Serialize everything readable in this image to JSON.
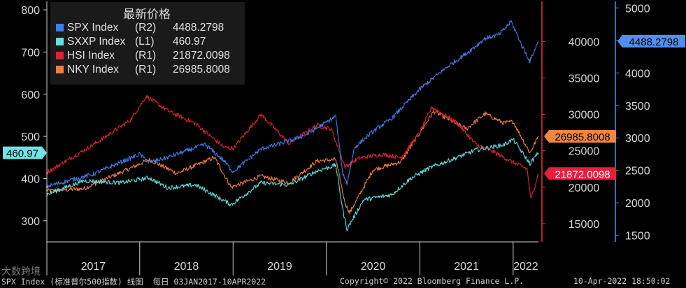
{
  "chart_data": {
    "type": "line",
    "title": "最新价格",
    "x_range": [
      "2017-01-03",
      "2022-04-10"
    ],
    "x_ticks": [
      "2017",
      "2018",
      "2019",
      "2020",
      "2021",
      "2022"
    ],
    "grid": false,
    "legend_position": "top-left",
    "axes": {
      "L1": {
        "side": "left",
        "range": [
          250,
          820
        ],
        "ticks": [
          300,
          400,
          500,
          600,
          700,
          800
        ],
        "color": "#d8d8d8"
      },
      "R1": {
        "side": "right",
        "range": [
          12500,
          45500
        ],
        "ticks": [
          15000,
          20000,
          25000,
          30000,
          35000,
          40000
        ],
        "color": "#e8323c"
      },
      "R2": {
        "side": "right",
        "range": [
          1400,
          5100
        ],
        "ticks": [
          1500,
          2000,
          2500,
          3000,
          3500,
          4000,
          4500,
          5000
        ],
        "color": "#4f8ff0"
      }
    },
    "series": [
      {
        "name": "SPX Index",
        "axis": "R2",
        "last": "4488.2798",
        "color": "#3d7ff0",
        "x": [
          2017.0,
          2017.5,
          2018.0,
          2018.1,
          2018.3,
          2018.7,
          2018.9,
          2019.0,
          2019.3,
          2019.6,
          2019.8,
          2020.1,
          2020.17,
          2020.22,
          2020.3,
          2020.5,
          2020.7,
          2020.9,
          2021.0,
          2021.3,
          2021.5,
          2021.7,
          2021.85,
          2021.98,
          2022.1,
          2022.18,
          2022.27
        ],
        "values": [
          2250,
          2440,
          2750,
          2620,
          2700,
          2900,
          2650,
          2480,
          2830,
          2950,
          3060,
          3330,
          2480,
          2300,
          2850,
          3100,
          3300,
          3600,
          3750,
          4100,
          4300,
          4530,
          4590,
          4790,
          4400,
          4180,
          4488
        ]
      },
      {
        "name": "SXXP Index",
        "axis": "L1",
        "last": "460.97",
        "color": "#5fe0e0",
        "x": [
          2017.0,
          2017.4,
          2017.8,
          2018.1,
          2018.3,
          2018.6,
          2018.98,
          2019.3,
          2019.6,
          2019.9,
          2020.1,
          2020.18,
          2020.22,
          2020.4,
          2020.7,
          2020.9,
          2021.1,
          2021.4,
          2021.6,
          2021.9,
          2022.0,
          2022.18,
          2022.27
        ],
        "values": [
          362,
          395,
          390,
          402,
          378,
          385,
          338,
          390,
          385,
          418,
          432,
          320,
          280,
          350,
          362,
          400,
          425,
          450,
          468,
          480,
          493,
          435,
          461
        ]
      },
      {
        "name": "HSI Index",
        "axis": "R1",
        "last": "21872.0098",
        "color": "#e02030",
        "x": [
          2017.0,
          2017.5,
          2017.9,
          2018.07,
          2018.3,
          2018.6,
          2018.9,
          2019.0,
          2019.3,
          2019.6,
          2019.9,
          2020.05,
          2020.2,
          2020.35,
          2020.6,
          2020.8,
          2021.0,
          2021.13,
          2021.4,
          2021.6,
          2021.8,
          2022.0,
          2022.15,
          2022.19,
          2022.27
        ],
        "values": [
          22000,
          25800,
          29200,
          32500,
          30500,
          28700,
          25500,
          25300,
          30000,
          26000,
          28500,
          28000,
          22800,
          24000,
          24500,
          24100,
          27500,
          31000,
          28800,
          25900,
          24800,
          23400,
          22500,
          18300,
          21872
        ]
      },
      {
        "name": "NKY Index",
        "axis": "R1",
        "last": "26985.8008",
        "color": "#f47c3a",
        "x": [
          2017.0,
          2017.4,
          2017.9,
          2018.1,
          2018.4,
          2018.8,
          2018.98,
          2019.3,
          2019.6,
          2019.9,
          2020.1,
          2020.2,
          2020.25,
          2020.5,
          2020.8,
          2021.0,
          2021.15,
          2021.5,
          2021.7,
          2021.9,
          2022.0,
          2022.18,
          2022.27
        ],
        "values": [
          19500,
          19800,
          22600,
          23800,
          21900,
          24100,
          20000,
          21500,
          20600,
          23600,
          23800,
          17800,
          16500,
          22400,
          23500,
          27500,
          30400,
          28000,
          30100,
          28800,
          29000,
          24700,
          26986
        ]
      }
    ]
  },
  "footer": {
    "left": "SPX Index (标准普尔500指数) 线图  每日 03JAN2017-10APR2022",
    "center": "Copyright© 2022 Bloomberg Finance L.P.",
    "right": "10-Apr-2022 18:50:02"
  },
  "watermark": "大数跨境"
}
